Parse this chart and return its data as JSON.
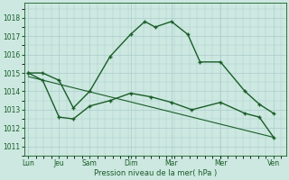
{
  "title": "Pression niveau de la mer( hPa )",
  "bg_color": "#cce8e0",
  "grid_color": "#aacccc",
  "line_color": "#1a5c28",
  "ylim": [
    1010.5,
    1018.8
  ],
  "yticks": [
    1011,
    1012,
    1013,
    1014,
    1015,
    1016,
    1017,
    1018
  ],
  "xtick_labels": [
    "Lun",
    "Jeu",
    "Sam",
    "Dim",
    "Mar",
    "Mer",
    "Ven"
  ],
  "xtick_positions": [
    0,
    0.75,
    1.5,
    2.5,
    3.5,
    4.7,
    6.0
  ],
  "xlim": [
    -0.1,
    6.3
  ],
  "series1_x": [
    0,
    0.35,
    0.75,
    1.1,
    1.5,
    2.0,
    2.5,
    2.85,
    3.1,
    3.5,
    3.9,
    4.2,
    4.7,
    5.3,
    5.65,
    6.0
  ],
  "series1_y": [
    1015.0,
    1015.0,
    1014.6,
    1013.1,
    1014.0,
    1015.9,
    1017.1,
    1017.8,
    1017.5,
    1017.8,
    1017.1,
    1015.6,
    1015.6,
    1014.0,
    1013.3,
    1012.8
  ],
  "series2_x": [
    0,
    0.35,
    0.75,
    1.1,
    1.5,
    2.0,
    2.5,
    3.0,
    3.5,
    4.0,
    4.7,
    5.3,
    5.65,
    6.0
  ],
  "series2_y": [
    1015.0,
    1014.6,
    1012.6,
    1012.5,
    1013.2,
    1013.5,
    1013.9,
    1013.7,
    1013.4,
    1013.0,
    1013.4,
    1012.8,
    1012.6,
    1011.5
  ],
  "trend_x": [
    0,
    6.0
  ],
  "trend_y": [
    1014.8,
    1011.5
  ]
}
